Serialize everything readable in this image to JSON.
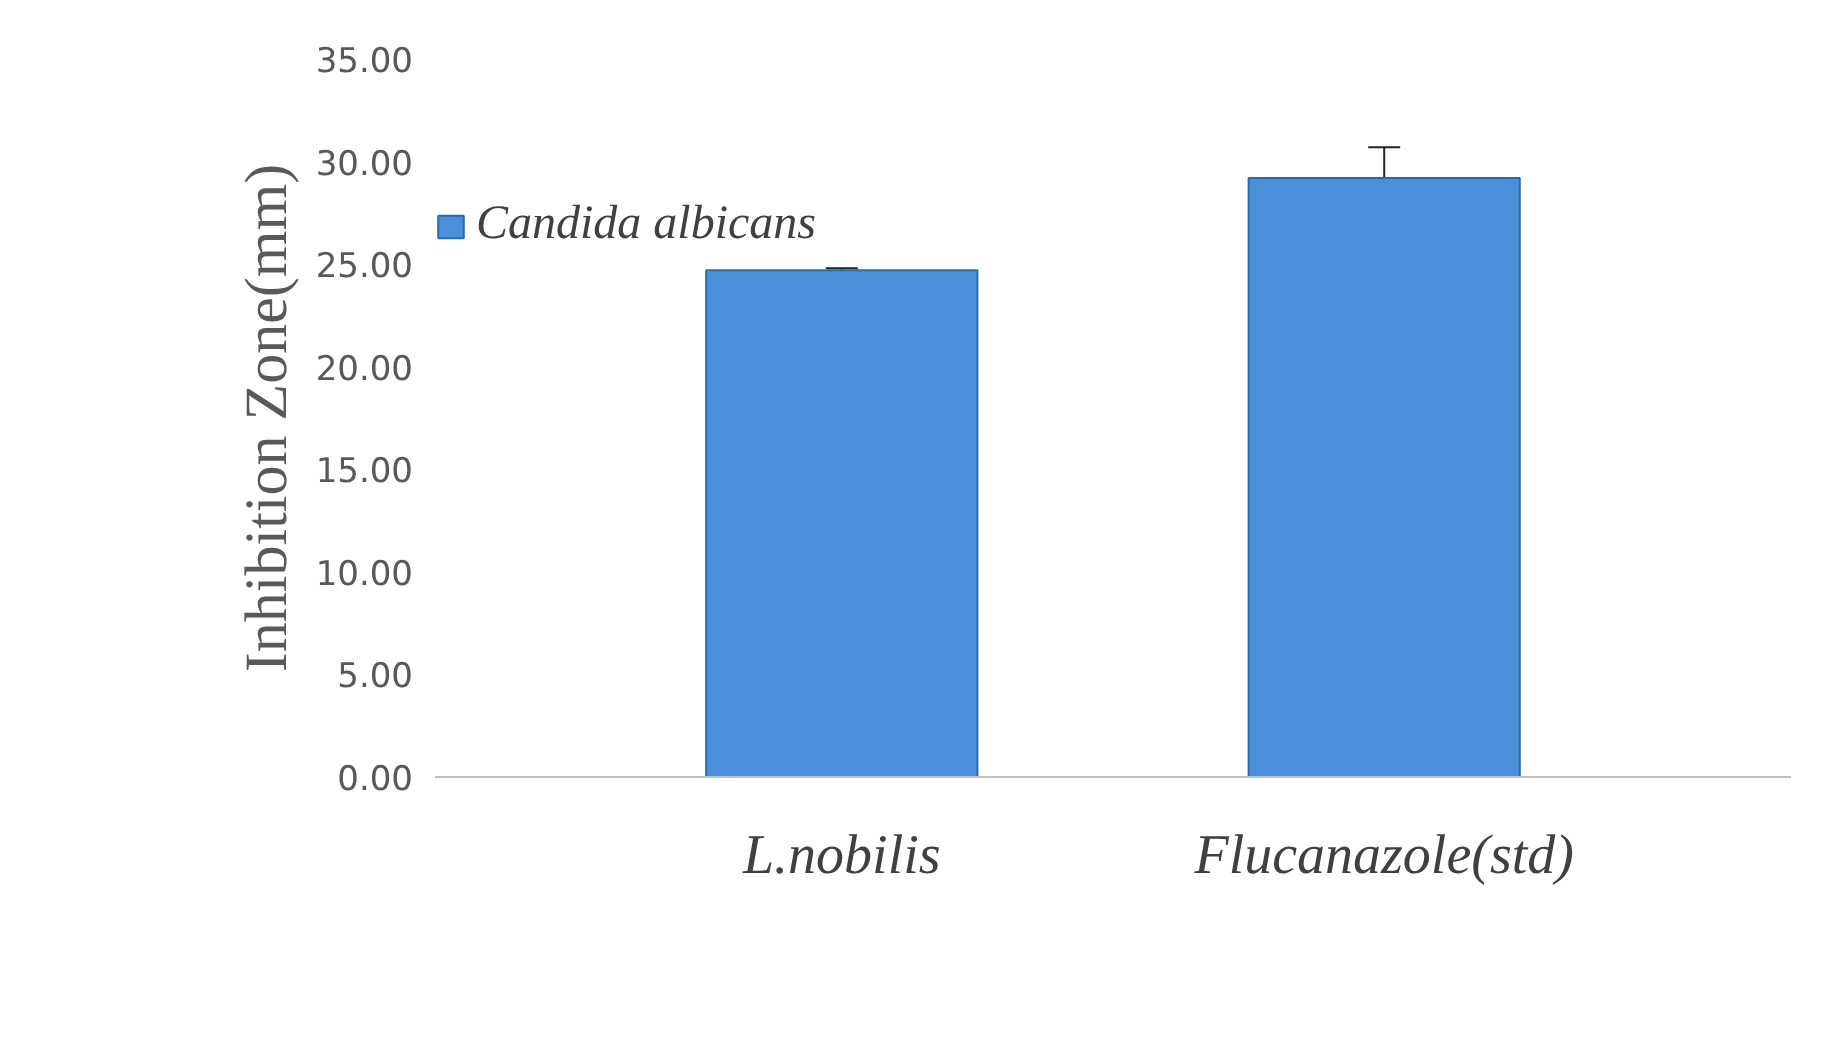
{
  "chart_data": {
    "type": "bar",
    "ylabel": "Inhibition Zone(mm)",
    "categories": [
      "L.nobilis",
      "Flucanazole(std)"
    ],
    "series": [
      {
        "name": "Candida albicans",
        "color": "#4a90d9",
        "values": [
          24.7,
          29.2
        ],
        "errors": [
          0.1,
          1.5
        ]
      }
    ],
    "ylim": [
      0,
      35
    ],
    "yticks": [
      {
        "value": 0,
        "label": "0.00"
      },
      {
        "value": 5,
        "label": "5.00"
      },
      {
        "value": 10,
        "label": "10.00"
      },
      {
        "value": 15,
        "label": "15.00"
      },
      {
        "value": 20,
        "label": "20.00"
      },
      {
        "value": 25,
        "label": "25.00"
      },
      {
        "value": 30,
        "label": "30.00"
      },
      {
        "value": 35,
        "label": "35.00"
      }
    ],
    "grid": false,
    "legend": "top left"
  }
}
